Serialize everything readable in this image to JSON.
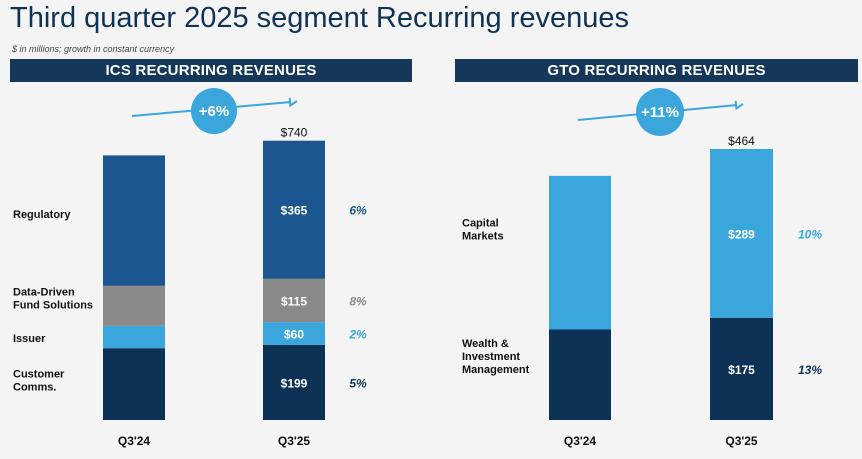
{
  "title": "Third quarter 2025 segment Recurring revenues",
  "note": "$ in millions; growth in constant currency",
  "colors": {
    "header_bg": "#14375a",
    "regulatory": "#1b5690",
    "data_driven": "#8a8a8a",
    "issuer": "#3aa6dc",
    "customer": "#0d3256",
    "capital_markets": "#3aa6dc",
    "wealth": "#0d3256",
    "arrow": "#3aa6dc"
  },
  "chart_data": [
    {
      "type": "bar",
      "stacked": true,
      "header": "ICS RECURRING REVENUES",
      "categories": [
        "Q3'24",
        "Q3'25"
      ],
      "growth_badge": "+6%",
      "totals": [
        null,
        "$740"
      ],
      "series": [
        {
          "name": "Customer Comms.",
          "values": [
            190,
            199
          ],
          "label": "$199",
          "growth": "5%",
          "color": "#0d3256",
          "growth_color": "#0d3256"
        },
        {
          "name": "Issuer",
          "values": [
            59,
            60
          ],
          "label": "$60",
          "growth": "2%",
          "color": "#3aa6dc",
          "growth_color": "#3aa6dc"
        },
        {
          "name": "Data-Driven Fund Solutions",
          "values": [
            106,
            115
          ],
          "label": "$115",
          "growth": "8%",
          "color": "#8a8a8a",
          "growth_color": "#8a8a8a"
        },
        {
          "name": "Regulatory",
          "values": [
            345,
            365
          ],
          "label": "$365",
          "growth": "6%",
          "color": "#1b5690",
          "growth_color": "#1b5690"
        }
      ]
    },
    {
      "type": "bar",
      "stacked": true,
      "header": "GTO RECURRING REVENUES",
      "categories": [
        "Q3'24",
        "Q3'25"
      ],
      "growth_badge": "+11%",
      "totals": [
        null,
        "$464"
      ],
      "series": [
        {
          "name": "Wealth & Investment Management",
          "name_lines": [
            "Wealth &",
            "Investment",
            "Management"
          ],
          "values": [
            155,
            175
          ],
          "label": "$175",
          "growth": "13%",
          "color": "#0d3256",
          "growth_color": "#0d3256"
        },
        {
          "name": "Capital Markets",
          "name_lines": [
            "Capital",
            "Markets"
          ],
          "values": [
            263,
            289
          ],
          "label": "$289",
          "growth": "10%",
          "color": "#3aa6dc",
          "growth_color": "#3aa6dc"
        }
      ]
    }
  ]
}
